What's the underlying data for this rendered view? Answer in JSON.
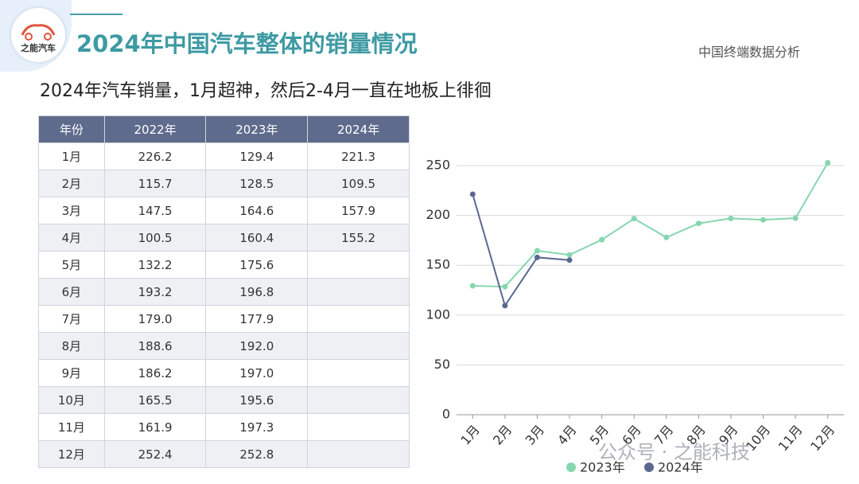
{
  "header": {
    "logo": "之能汽车",
    "title": "2024年中国汽车整体的销量情况",
    "source": "中国终端数据分析",
    "subtitle": "2024年汽车销量，1月超神，然后2-4月一直在地板上徘徊"
  },
  "table": {
    "header": [
      "年份",
      "2022年",
      "2023年",
      "2024年"
    ],
    "rows": [
      [
        "1月",
        "226.2",
        "129.4",
        "221.3"
      ],
      [
        "2月",
        "115.7",
        "128.5",
        "109.5"
      ],
      [
        "3月",
        "147.5",
        "164.6",
        "157.9"
      ],
      [
        "4月",
        "100.5",
        "160.4",
        "155.2"
      ],
      [
        "5月",
        "132.2",
        "175.6"
      ],
      [
        "6月",
        "193.2",
        "196.8"
      ],
      [
        "7月",
        "179.0",
        "177.9"
      ],
      [
        "8月",
        "188.6",
        "192.0"
      ],
      [
        "9月",
        "186.2",
        "197.0"
      ],
      [
        "10月",
        "165.5",
        "195.6"
      ],
      [
        "11月",
        "161.9",
        "197.3"
      ],
      [
        "12月",
        "252.4",
        "252.8"
      ]
    ]
  },
  "chart_data": {
    "type": "line",
    "categories": [
      "1月",
      "2月",
      "3月",
      "4月",
      "5月",
      "6月",
      "7月",
      "8月",
      "9月",
      "10月",
      "11月",
      "12月"
    ],
    "series": [
      {
        "name": "2023年",
        "color": "#86d6ae",
        "values": [
          129.4,
          128.5,
          164.6,
          160.4,
          175.6,
          196.8,
          177.9,
          192.0,
          197.0,
          195.6,
          197.3,
          252.8
        ]
      },
      {
        "name": "2024年",
        "color": "#5b6890",
        "values": [
          221.3,
          109.5,
          157.9,
          155.2,
          null,
          null,
          null,
          null,
          null,
          null,
          null,
          null
        ]
      }
    ],
    "ylim": [
      0,
      260
    ],
    "yticks": [
      0,
      50,
      100,
      150,
      200,
      250
    ],
    "grid": true,
    "legend": "bottom"
  },
  "watermark": "公众号 · 之能科技"
}
